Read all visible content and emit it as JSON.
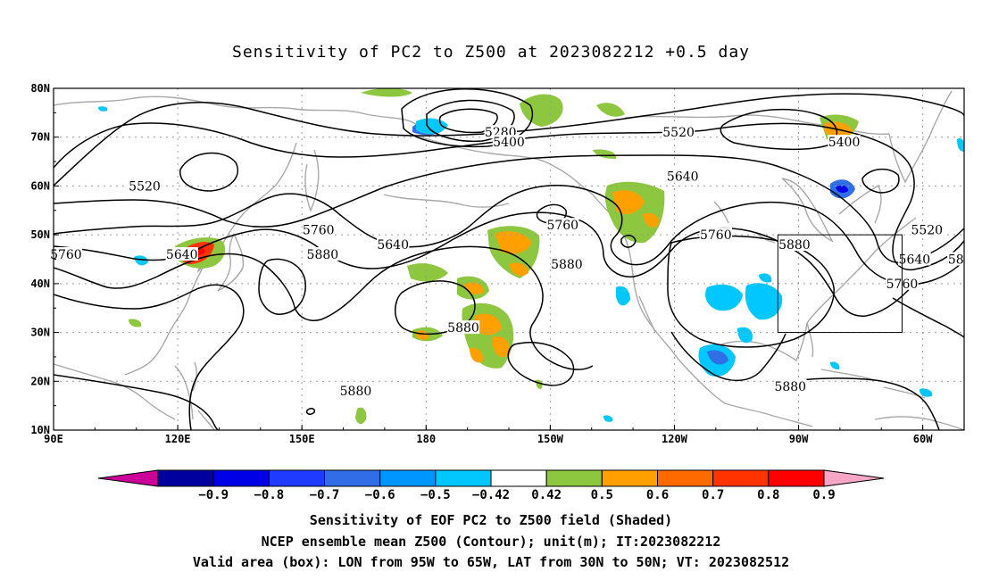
{
  "title": "Sensitivity of PC2 to Z500 at 2023082212 +0.5 day",
  "chart_data": {
    "type": "contour",
    "title": "Sensitivity of PC2 to Z500 at 2023082212 +0.5 day",
    "x_ticks": [
      "90E",
      "120E",
      "150E",
      "180",
      "150W",
      "120W",
      "90W",
      "60W"
    ],
    "y_ticks": [
      "10N",
      "20N",
      "30N",
      "40N",
      "50N",
      "60N",
      "70N",
      "80N"
    ],
    "lon_range": [
      "90E",
      "50W"
    ],
    "lat_range": [
      "10N",
      "80N"
    ],
    "grid": true,
    "colorbar": {
      "labels": [
        "-0.9",
        "-0.8",
        "-0.7",
        "-0.6",
        "-0.5",
        "-0.42",
        "0.42",
        "0.5",
        "0.6",
        "0.7",
        "0.8",
        "0.9"
      ],
      "colors": [
        "#cc0099",
        "#00009e",
        "#0000e6",
        "#1e3cff",
        "#2f6ee6",
        "#0096ff",
        "#00c8ff",
        "#ffffff",
        "#8dc63f",
        "#ffa000",
        "#ff6a00",
        "#ff3300",
        "#ff0000",
        "#f7a6c8"
      ]
    },
    "contour_labels": [
      {
        "value": "5280",
        "lon": 198,
        "lat": 71
      },
      {
        "value": "5400",
        "lon": 200,
        "lat": 69
      },
      {
        "value": "5520",
        "lon": 241,
        "lat": 71
      },
      {
        "value": "5400",
        "lon": 281,
        "lat": 69
      },
      {
        "value": "5520",
        "lon": 112,
        "lat": 60
      },
      {
        "value": "5640",
        "lon": 242,
        "lat": 62
      },
      {
        "value": "5760",
        "lon": 154,
        "lat": 51
      },
      {
        "value": "5640",
        "lon": 172,
        "lat": 48
      },
      {
        "value": "5760",
        "lon": 213,
        "lat": 52
      },
      {
        "value": "5760",
        "lon": 250,
        "lat": 50
      },
      {
        "value": "5880",
        "lon": 155,
        "lat": 46
      },
      {
        "value": "5880",
        "lon": 214,
        "lat": 44
      },
      {
        "value": "5880",
        "lon": 269,
        "lat": 48
      },
      {
        "value": "5760",
        "lon": 93,
        "lat": 46
      },
      {
        "value": "5640",
        "lon": 121,
        "lat": 46
      },
      {
        "value": "5520",
        "lon": 301,
        "lat": 51
      },
      {
        "value": "5640",
        "lon": 298,
        "lat": 45
      },
      {
        "value": "5760",
        "lon": 295,
        "lat": 40
      },
      {
        "value": "58",
        "lon": 308,
        "lat": 45
      },
      {
        "value": "5880",
        "lon": 189,
        "lat": 31
      },
      {
        "value": "5880",
        "lon": 163,
        "lat": 18
      },
      {
        "value": "5880",
        "lon": 268,
        "lat": 19
      }
    ],
    "valid_box": {
      "lon_min": "95W",
      "lon_max": "65W",
      "lat_min": "30N",
      "lat_max": "50N"
    }
  },
  "caption": {
    "line1": "Sensitivity of EOF PC2 to Z500 field (Shaded)",
    "line2": "NCEP ensemble mean Z500 (Contour); unit(m); IT:2023082212",
    "line3": "Valid area (box): LON from 95W to 65W, LAT from 30N to 50N; VT: 2023082512"
  }
}
